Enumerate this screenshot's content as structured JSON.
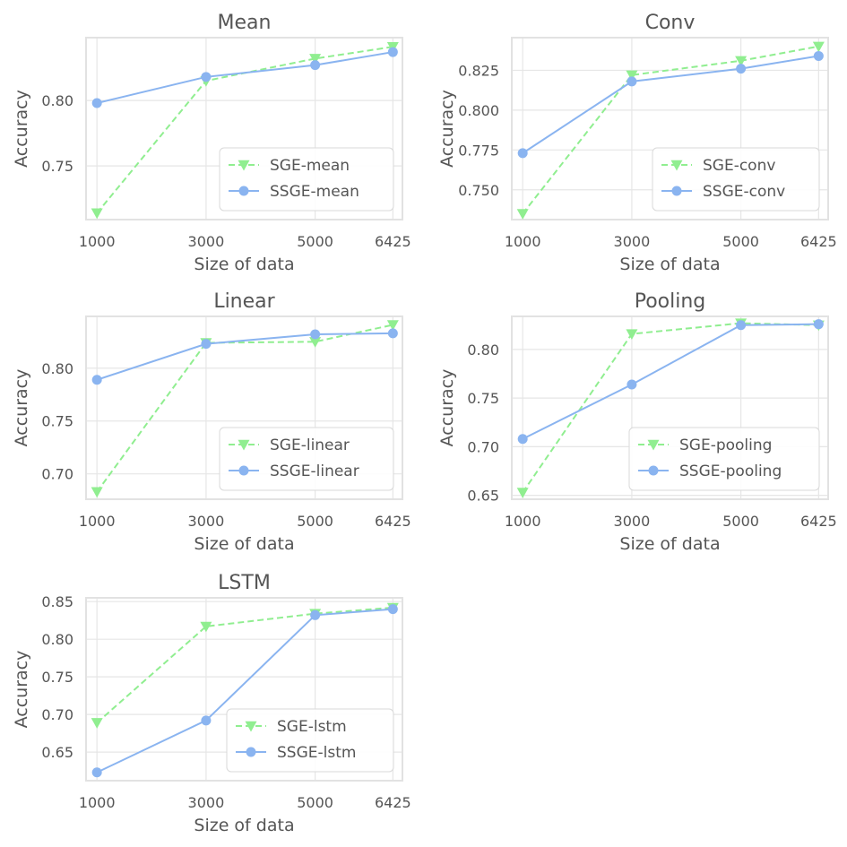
{
  "colors": {
    "sge": "#90ee90",
    "ssge": "#8ab4f0",
    "text": "#555555"
  },
  "chart_data": [
    {
      "type": "line",
      "title": "Mean",
      "xlabel": "Size of data",
      "ylabel": "Accuracy",
      "x": [
        1000,
        3000,
        5000,
        6425
      ],
      "xticks": [
        "1000",
        "3000",
        "5000",
        "6425"
      ],
      "xlim": [
        800,
        6600
      ],
      "ylim": [
        0.709,
        0.848
      ],
      "yticks": [
        0.75,
        0.8
      ],
      "ytick_labels": [
        "0.75",
        "0.80"
      ],
      "legend": "lower-right",
      "series": [
        {
          "name": "SGE-mean",
          "values": [
            0.714,
            0.815,
            0.832,
            0.841
          ],
          "style": "dashed",
          "marker": "triangle-down"
        },
        {
          "name": "SSGE-mean",
          "values": [
            0.798,
            0.818,
            0.827,
            0.837
          ],
          "style": "solid",
          "marker": "circle"
        }
      ]
    },
    {
      "type": "line",
      "title": "Conv",
      "xlabel": "Size of data",
      "ylabel": "Accuracy",
      "x": [
        1000,
        3000,
        5000,
        6425
      ],
      "xticks": [
        "1000",
        "3000",
        "5000",
        "6425"
      ],
      "xlim": [
        800,
        6600
      ],
      "ylim": [
        0.7313,
        0.8455
      ],
      "yticks": [
        0.75,
        0.775,
        0.8,
        0.825
      ],
      "ytick_labels": [
        "0.750",
        "0.775",
        "0.800",
        "0.825"
      ],
      "legend": "lower-right",
      "series": [
        {
          "name": "SGE-conv",
          "values": [
            0.735,
            0.822,
            0.831,
            0.84
          ],
          "style": "dashed",
          "marker": "triangle-down"
        },
        {
          "name": "SSGE-conv",
          "values": [
            0.773,
            0.818,
            0.826,
            0.834
          ],
          "style": "solid",
          "marker": "circle"
        }
      ]
    },
    {
      "type": "line",
      "title": "Linear",
      "xlabel": "Size of data",
      "ylabel": "Accuracy",
      "x": [
        1000,
        3000,
        5000,
        6425
      ],
      "xticks": [
        "1000",
        "3000",
        "5000",
        "6425"
      ],
      "xlim": [
        800,
        6600
      ],
      "ylim": [
        0.676,
        0.849
      ],
      "yticks": [
        0.7,
        0.75,
        0.8
      ],
      "ytick_labels": [
        "0.70",
        "0.75",
        "0.80"
      ],
      "legend": "lower-right",
      "series": [
        {
          "name": "SGE-linear",
          "values": [
            0.683,
            0.824,
            0.825,
            0.841
          ],
          "style": "dashed",
          "marker": "triangle-down"
        },
        {
          "name": "SSGE-linear",
          "values": [
            0.789,
            0.823,
            0.832,
            0.833
          ],
          "style": "solid",
          "marker": "circle"
        }
      ]
    },
    {
      "type": "line",
      "title": "Pooling",
      "xlabel": "Size of data",
      "ylabel": "Accuracy",
      "x": [
        1000,
        3000,
        5000,
        6425
      ],
      "xticks": [
        "1000",
        "3000",
        "5000",
        "6425"
      ],
      "xlim": [
        800,
        6600
      ],
      "ylim": [
        0.646,
        0.834
      ],
      "yticks": [
        0.65,
        0.7,
        0.75,
        0.8
      ],
      "ytick_labels": [
        "0.65",
        "0.70",
        "0.75",
        "0.80"
      ],
      "legend": "lower-right",
      "series": [
        {
          "name": "SGE-pooling",
          "values": [
            0.653,
            0.816,
            0.827,
            0.825
          ],
          "style": "dashed",
          "marker": "triangle-down"
        },
        {
          "name": "SSGE-pooling",
          "values": [
            0.708,
            0.764,
            0.825,
            0.826
          ],
          "style": "solid",
          "marker": "circle"
        }
      ]
    },
    {
      "type": "line",
      "title": "LSTM",
      "xlabel": "Size of data",
      "ylabel": "Accuracy",
      "x": [
        1000,
        3000,
        5000,
        6425
      ],
      "xticks": [
        "1000",
        "3000",
        "5000",
        "6425"
      ],
      "xlim": [
        800,
        6600
      ],
      "ylim": [
        0.612,
        0.855
      ],
      "yticks": [
        0.65,
        0.7,
        0.75,
        0.8,
        0.85
      ],
      "ytick_labels": [
        "0.65",
        "0.70",
        "0.75",
        "0.80",
        "0.85"
      ],
      "legend": "lower-right",
      "series": [
        {
          "name": "SGE-lstm",
          "values": [
            0.689,
            0.817,
            0.834,
            0.842
          ],
          "style": "dashed",
          "marker": "triangle-down"
        },
        {
          "name": "SSGE-lstm",
          "values": [
            0.623,
            0.692,
            0.832,
            0.84
          ],
          "style": "solid",
          "marker": "circle"
        }
      ]
    }
  ]
}
